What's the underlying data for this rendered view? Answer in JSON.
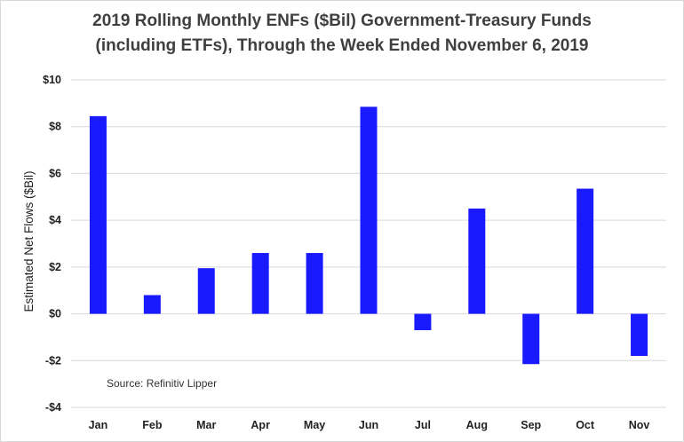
{
  "chart_data": {
    "type": "bar",
    "title": [
      "2019 Rolling Monthly ENFs ($Bil) Government-Treasury Funds",
      "(including ETFs), Through the Week Ended November 6, 2019"
    ],
    "xlabel": "",
    "ylabel": "Estimated Net Flows ($Bil)",
    "categories": [
      "Jan",
      "Feb",
      "Mar",
      "Apr",
      "May",
      "Jun",
      "Jul",
      "Aug",
      "Sep",
      "Oct",
      "Nov"
    ],
    "values": [
      8.45,
      0.8,
      1.95,
      2.6,
      2.6,
      8.85,
      -0.7,
      4.5,
      -2.15,
      5.35,
      -1.8
    ],
    "ylim": [
      -4,
      10
    ],
    "yticks": [
      10,
      8,
      6,
      4,
      2,
      0,
      -2,
      -4
    ],
    "ytick_labels": [
      "$10",
      "$8",
      "$6",
      "$4",
      "$2",
      "$0",
      "-$2",
      "-$4"
    ],
    "bar_color": "#1a1aff",
    "grid": true,
    "annotation": "Source: Refinitiv Lipper"
  }
}
